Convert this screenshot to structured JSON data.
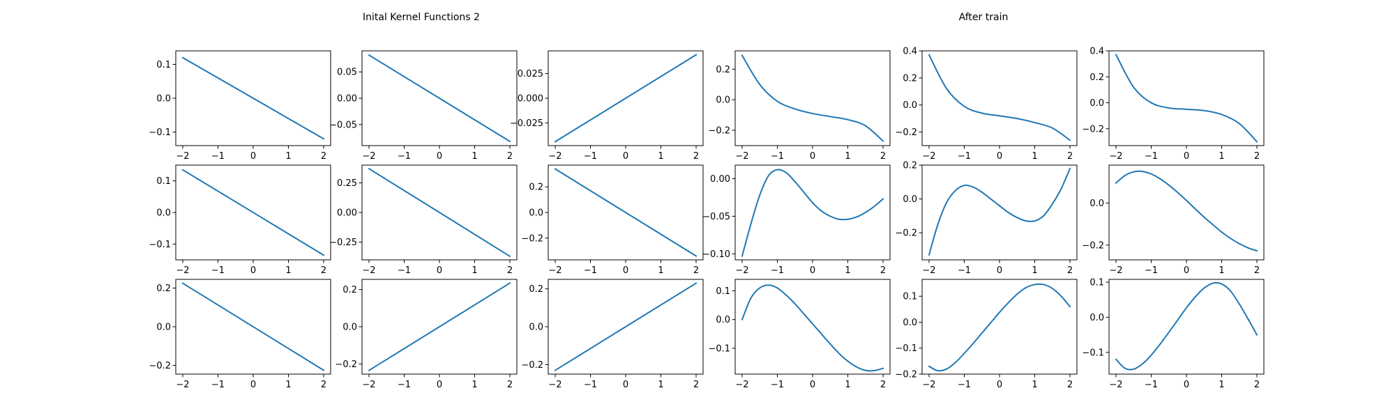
{
  "figure": {
    "titles": {
      "left": "Inital Kernel Functions 2",
      "right": "After train"
    }
  },
  "chart_data": [
    {
      "type": "line",
      "grid": "off",
      "panel": "initial",
      "row": 0,
      "col": 0,
      "x_range": [
        -2,
        2
      ],
      "xticks": [
        -2,
        -1,
        0,
        1,
        2
      ],
      "xtick_labels": [
        "−2",
        "−1",
        "0",
        "1",
        "2"
      ],
      "ylim": [
        -0.14,
        0.14
      ],
      "yticks": [
        -0.1,
        0.0,
        0.1
      ],
      "ytick_labels": [
        "−0.1",
        "0.0",
        "0.1"
      ],
      "series": [
        {
          "color": "#1f77b4",
          "x": [
            -2,
            2
          ],
          "y": [
            0.12,
            -0.12
          ]
        }
      ]
    },
    {
      "type": "line",
      "grid": "off",
      "panel": "initial",
      "row": 0,
      "col": 1,
      "x_range": [
        -2,
        2
      ],
      "xticks": [
        -2,
        -1,
        0,
        1,
        2
      ],
      "xtick_labels": [
        "−2",
        "−1",
        "0",
        "1",
        "2"
      ],
      "ylim": [
        -0.09,
        0.09
      ],
      "yticks": [
        -0.05,
        0.0,
        0.05
      ],
      "ytick_labels": [
        "−0.05",
        "0.00",
        "0.05"
      ],
      "series": [
        {
          "color": "#1f77b4",
          "x": [
            -2,
            2
          ],
          "y": [
            0.082,
            -0.082
          ]
        }
      ]
    },
    {
      "type": "line",
      "grid": "off",
      "panel": "initial",
      "row": 0,
      "col": 2,
      "x_range": [
        -2,
        2
      ],
      "xticks": [
        -2,
        -1,
        0,
        1,
        2
      ],
      "xtick_labels": [
        "−2",
        "−1",
        "0",
        "1",
        "2"
      ],
      "ylim": [
        -0.048,
        0.048
      ],
      "yticks": [
        -0.025,
        0.0,
        0.025
      ],
      "ytick_labels": [
        "−0.025",
        "0.000",
        "0.025"
      ],
      "series": [
        {
          "color": "#1f77b4",
          "x": [
            -2,
            2
          ],
          "y": [
            -0.044,
            0.044
          ]
        }
      ]
    },
    {
      "type": "line",
      "grid": "off",
      "panel": "after",
      "row": 0,
      "col": 0,
      "x_range": [
        -2,
        2
      ],
      "xticks": [
        -2,
        -1,
        0,
        1,
        2
      ],
      "xtick_labels": [
        "−2",
        "−1",
        "0",
        "1",
        "2"
      ],
      "ylim": [
        -0.3,
        0.32
      ],
      "yticks": [
        -0.2,
        0.0,
        0.2
      ],
      "ytick_labels": [
        "−0.2",
        "0.0",
        "0.2"
      ],
      "series": [
        {
          "color": "#1f77b4",
          "x": [
            -2,
            -1.5,
            -1,
            -0.5,
            0,
            0.5,
            1,
            1.5,
            2
          ],
          "y": [
            0.29,
            0.1,
            -0.01,
            -0.06,
            -0.09,
            -0.11,
            -0.13,
            -0.17,
            -0.27
          ]
        }
      ]
    },
    {
      "type": "line",
      "grid": "off",
      "panel": "after",
      "row": 0,
      "col": 1,
      "x_range": [
        -2,
        2
      ],
      "xticks": [
        -2,
        -1,
        0,
        1,
        2
      ],
      "xtick_labels": [
        "−2",
        "−1",
        "0",
        "1",
        "2"
      ],
      "ylim": [
        -0.3,
        0.4
      ],
      "yticks": [
        -0.2,
        0.0,
        0.2,
        0.4
      ],
      "ytick_labels": [
        "−0.2",
        "0.0",
        "0.2",
        "0.4"
      ],
      "series": [
        {
          "color": "#1f77b4",
          "x": [
            -2,
            -1.5,
            -1,
            -0.5,
            0,
            0.5,
            1,
            1.5,
            2
          ],
          "y": [
            0.37,
            0.12,
            -0.01,
            -0.06,
            -0.08,
            -0.1,
            -0.13,
            -0.17,
            -0.26
          ]
        }
      ]
    },
    {
      "type": "line",
      "grid": "off",
      "panel": "after",
      "row": 0,
      "col": 2,
      "x_range": [
        -2,
        2
      ],
      "xticks": [
        -2,
        -1,
        0,
        1,
        2
      ],
      "xtick_labels": [
        "−2",
        "−1",
        "0",
        "1",
        "2"
      ],
      "ylim": [
        -0.33,
        0.4
      ],
      "yticks": [
        -0.2,
        0.0,
        0.2,
        0.4
      ],
      "ytick_labels": [
        "−0.2",
        "0.0",
        "0.2",
        "0.4"
      ],
      "series": [
        {
          "color": "#1f77b4",
          "x": [
            -2,
            -1.5,
            -1,
            -0.5,
            0,
            0.5,
            1,
            1.5,
            2
          ],
          "y": [
            0.37,
            0.12,
            0.0,
            -0.04,
            -0.05,
            -0.06,
            -0.09,
            -0.16,
            -0.3
          ]
        }
      ]
    },
    {
      "type": "line",
      "grid": "off",
      "panel": "initial",
      "row": 1,
      "col": 0,
      "x_range": [
        -2,
        2
      ],
      "xticks": [
        -2,
        -1,
        0,
        1,
        2
      ],
      "xtick_labels": [
        "−2",
        "−1",
        "0",
        "1",
        "2"
      ],
      "ylim": [
        -0.15,
        0.15
      ],
      "yticks": [
        -0.1,
        0.0,
        0.1
      ],
      "ytick_labels": [
        "−0.1",
        "0.0",
        "0.1"
      ],
      "series": [
        {
          "color": "#1f77b4",
          "x": [
            -2,
            2
          ],
          "y": [
            0.135,
            -0.135
          ]
        }
      ]
    },
    {
      "type": "line",
      "grid": "off",
      "panel": "initial",
      "row": 1,
      "col": 1,
      "x_range": [
        -2,
        2
      ],
      "xticks": [
        -2,
        -1,
        0,
        1,
        2
      ],
      "xtick_labels": [
        "−2",
        "−1",
        "0",
        "1",
        "2"
      ],
      "ylim": [
        -0.4,
        0.4
      ],
      "yticks": [
        -0.25,
        0.0,
        0.25
      ],
      "ytick_labels": [
        "−0.25",
        "0.00",
        "0.25"
      ],
      "series": [
        {
          "color": "#1f77b4",
          "x": [
            -2,
            2
          ],
          "y": [
            0.37,
            -0.37
          ]
        }
      ]
    },
    {
      "type": "line",
      "grid": "off",
      "panel": "initial",
      "row": 1,
      "col": 2,
      "x_range": [
        -2,
        2
      ],
      "xticks": [
        -2,
        -1,
        0,
        1,
        2
      ],
      "xtick_labels": [
        "−2",
        "−1",
        "0",
        "1",
        "2"
      ],
      "ylim": [
        -0.37,
        0.37
      ],
      "yticks": [
        -0.2,
        0.0,
        0.2
      ],
      "ytick_labels": [
        "−0.2",
        "0.0",
        "0.2"
      ],
      "series": [
        {
          "color": "#1f77b4",
          "x": [
            -2,
            2
          ],
          "y": [
            0.34,
            -0.34
          ]
        }
      ]
    },
    {
      "type": "line",
      "grid": "off",
      "panel": "after",
      "row": 1,
      "col": 0,
      "x_range": [
        -2,
        2
      ],
      "xticks": [
        -2,
        -1,
        0,
        1,
        2
      ],
      "xtick_labels": [
        "−2",
        "−1",
        "0",
        "1",
        "2"
      ],
      "ylim": [
        -0.108,
        0.018
      ],
      "yticks": [
        -0.1,
        -0.05,
        0.0
      ],
      "ytick_labels": [
        "−0.10",
        "−0.05",
        "0.00"
      ],
      "series": [
        {
          "color": "#1f77b4",
          "x": [
            -2,
            -1.75,
            -1.5,
            -1.25,
            -1,
            -0.75,
            -0.5,
            -0.25,
            0,
            0.25,
            0.5,
            0.75,
            1,
            1.25,
            1.5,
            1.75,
            2
          ],
          "y": [
            -0.103,
            -0.06,
            -0.022,
            0.004,
            0.012,
            0.008,
            -0.004,
            -0.018,
            -0.032,
            -0.043,
            -0.05,
            -0.054,
            -0.054,
            -0.051,
            -0.045,
            -0.037,
            -0.027
          ]
        }
      ]
    },
    {
      "type": "line",
      "grid": "off",
      "panel": "after",
      "row": 1,
      "col": 1,
      "x_range": [
        -2,
        2
      ],
      "xticks": [
        -2,
        -1,
        0,
        1,
        2
      ],
      "xtick_labels": [
        "−2",
        "−1",
        "0",
        "1",
        "2"
      ],
      "ylim": [
        -0.36,
        0.2
      ],
      "yticks": [
        -0.2,
        0.0,
        0.2
      ],
      "ytick_labels": [
        "−0.2",
        "0.0",
        "0.2"
      ],
      "series": [
        {
          "color": "#1f77b4",
          "x": [
            -2,
            -1.75,
            -1.5,
            -1.25,
            -1,
            -0.75,
            -0.5,
            -0.25,
            0,
            0.25,
            0.5,
            0.75,
            1,
            1.25,
            1.5,
            1.75,
            2
          ],
          "y": [
            -0.33,
            -0.15,
            -0.02,
            0.05,
            0.08,
            0.07,
            0.04,
            0.0,
            -0.04,
            -0.08,
            -0.11,
            -0.13,
            -0.13,
            -0.1,
            -0.03,
            0.06,
            0.18
          ]
        }
      ]
    },
    {
      "type": "line",
      "grid": "off",
      "panel": "after",
      "row": 1,
      "col": 2,
      "x_range": [
        -2,
        2
      ],
      "xticks": [
        -2,
        -1,
        0,
        1,
        2
      ],
      "xtick_labels": [
        "−2",
        "−1",
        "0",
        "1",
        "2"
      ],
      "ylim": [
        -0.27,
        0.18
      ],
      "yticks": [
        -0.2,
        0.0
      ],
      "ytick_labels": [
        "−0.2",
        "0.0"
      ],
      "series": [
        {
          "color": "#1f77b4",
          "x": [
            -2,
            -1.75,
            -1.5,
            -1.25,
            -1,
            -0.75,
            -0.5,
            -0.25,
            0,
            0.25,
            0.5,
            0.75,
            1,
            1.25,
            1.5,
            1.75,
            2
          ],
          "y": [
            0.095,
            0.13,
            0.148,
            0.15,
            0.138,
            0.115,
            0.085,
            0.05,
            0.012,
            -0.028,
            -0.067,
            -0.103,
            -0.138,
            -0.168,
            -0.193,
            -0.213,
            -0.227
          ]
        }
      ]
    },
    {
      "type": "line",
      "grid": "off",
      "panel": "initial",
      "row": 2,
      "col": 0,
      "x_range": [
        -2,
        2
      ],
      "xticks": [
        -2,
        -1,
        0,
        1,
        2
      ],
      "xtick_labels": [
        "−2",
        "−1",
        "0",
        "1",
        "2"
      ],
      "ylim": [
        -0.245,
        0.245
      ],
      "yticks": [
        -0.2,
        0.0,
        0.2
      ],
      "ytick_labels": [
        "−0.2",
        "0.0",
        "0.2"
      ],
      "series": [
        {
          "color": "#1f77b4",
          "x": [
            -2,
            2
          ],
          "y": [
            0.225,
            -0.225
          ]
        }
      ]
    },
    {
      "type": "line",
      "grid": "off",
      "panel": "initial",
      "row": 2,
      "col": 1,
      "x_range": [
        -2,
        2
      ],
      "xticks": [
        -2,
        -1,
        0,
        1,
        2
      ],
      "xtick_labels": [
        "−2",
        "−1",
        "0",
        "1",
        "2"
      ],
      "ylim": [
        -0.255,
        0.255
      ],
      "yticks": [
        -0.2,
        0.0,
        0.2
      ],
      "ytick_labels": [
        "−0.2",
        "0.0",
        "0.2"
      ],
      "series": [
        {
          "color": "#1f77b4",
          "x": [
            -2,
            2
          ],
          "y": [
            -0.235,
            0.235
          ]
        }
      ]
    },
    {
      "type": "line",
      "grid": "off",
      "panel": "initial",
      "row": 2,
      "col": 2,
      "x_range": [
        -2,
        2
      ],
      "xticks": [
        -2,
        -1,
        0,
        1,
        2
      ],
      "xtick_labels": [
        "−2",
        "−1",
        "0",
        "1",
        "2"
      ],
      "ylim": [
        -0.25,
        0.25
      ],
      "yticks": [
        -0.2,
        0.0,
        0.2
      ],
      "ytick_labels": [
        "−0.2",
        "0.0",
        "0.2"
      ],
      "series": [
        {
          "color": "#1f77b4",
          "x": [
            -2,
            2
          ],
          "y": [
            -0.23,
            0.23
          ]
        }
      ]
    },
    {
      "type": "line",
      "grid": "off",
      "panel": "after",
      "row": 2,
      "col": 0,
      "x_range": [
        -2,
        2
      ],
      "xticks": [
        -2,
        -1,
        0,
        1,
        2
      ],
      "xtick_labels": [
        "−2",
        "−1",
        "0",
        "1",
        "2"
      ],
      "ylim": [
        -0.19,
        0.14
      ],
      "yticks": [
        -0.1,
        0.0,
        0.1
      ],
      "ytick_labels": [
        "−0.1",
        "0.0",
        "0.1"
      ],
      "series": [
        {
          "color": "#1f77b4",
          "x": [
            -2,
            -1.75,
            -1.5,
            -1.25,
            -1,
            -0.75,
            -0.5,
            -0.25,
            0,
            0.25,
            0.5,
            0.75,
            1,
            1.25,
            1.5,
            1.75,
            2
          ],
          "y": [
            0.0,
            0.075,
            0.11,
            0.12,
            0.11,
            0.085,
            0.055,
            0.02,
            -0.015,
            -0.05,
            -0.085,
            -0.118,
            -0.145,
            -0.165,
            -0.177,
            -0.178,
            -0.17
          ]
        }
      ]
    },
    {
      "type": "line",
      "grid": "off",
      "panel": "after",
      "row": 2,
      "col": 1,
      "x_range": [
        -2,
        2
      ],
      "xticks": [
        -2,
        -1,
        0,
        1,
        2
      ],
      "xtick_labels": [
        "−2",
        "−1",
        "0",
        "1",
        "2"
      ],
      "ylim": [
        -0.2,
        0.165
      ],
      "yticks": [
        -0.2,
        -0.1,
        0.0,
        0.1
      ],
      "ytick_labels": [
        "−0.2",
        "−0.1",
        "0.0",
        "0.1"
      ],
      "series": [
        {
          "color": "#1f77b4",
          "x": [
            -2,
            -1.75,
            -1.5,
            -1.25,
            -1,
            -0.75,
            -0.5,
            -0.25,
            0,
            0.25,
            0.5,
            0.75,
            1,
            1.25,
            1.5,
            1.75,
            2
          ],
          "y": [
            -0.17,
            -0.187,
            -0.18,
            -0.155,
            -0.12,
            -0.082,
            -0.042,
            -0.002,
            0.038,
            0.075,
            0.108,
            0.133,
            0.145,
            0.145,
            0.13,
            0.1,
            0.06
          ]
        }
      ]
    },
    {
      "type": "line",
      "grid": "off",
      "panel": "after",
      "row": 2,
      "col": 2,
      "x_range": [
        -2,
        2
      ],
      "xticks": [
        -2,
        -1,
        0,
        1,
        2
      ],
      "xtick_labels": [
        "−2",
        "−1",
        "0",
        "1",
        "2"
      ],
      "ylim": [
        -0.162,
        0.108
      ],
      "yticks": [
        -0.1,
        0.0,
        0.1
      ],
      "ytick_labels": [
        "−0.1",
        "0.0",
        "0.1"
      ],
      "series": [
        {
          "color": "#1f77b4",
          "x": [
            -2,
            -1.75,
            -1.5,
            -1.25,
            -1,
            -0.75,
            -0.5,
            -0.25,
            0,
            0.25,
            0.5,
            0.75,
            1,
            1.25,
            1.5,
            1.75,
            2
          ],
          "y": [
            -0.12,
            -0.145,
            -0.148,
            -0.133,
            -0.108,
            -0.077,
            -0.043,
            -0.008,
            0.027,
            0.058,
            0.083,
            0.097,
            0.095,
            0.075,
            0.038,
            -0.005,
            -0.05
          ]
        }
      ]
    }
  ]
}
